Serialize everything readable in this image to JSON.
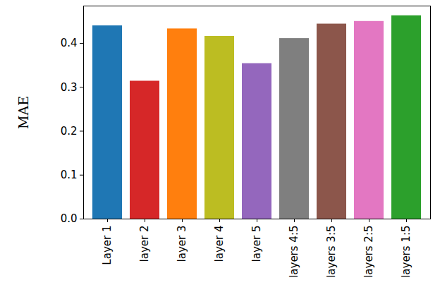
{
  "chart_data": {
    "type": "bar",
    "categories": [
      "Layer 1",
      "layer 2",
      "layer 3",
      "layer 4",
      "layer 5",
      "layers 4:5",
      "layers 3:5",
      "layers 2:5",
      "layers 1:5"
    ],
    "values": [
      0.44,
      0.314,
      0.433,
      0.416,
      0.354,
      0.411,
      0.444,
      0.45,
      0.463
    ],
    "colors": [
      "#1f77b4",
      "#d62728",
      "#ff7f0e",
      "#bcbd22",
      "#9467bd",
      "#7f7f7f",
      "#8c564b",
      "#e377c2",
      "#2ca02c"
    ],
    "y_label": "MAE",
    "ylim": [
      0,
      0.485
    ],
    "yticks": [
      {
        "value": 0,
        "label": "0.0"
      },
      0.1,
      0.2,
      0.3,
      0.4
    ],
    "grid": false
  }
}
